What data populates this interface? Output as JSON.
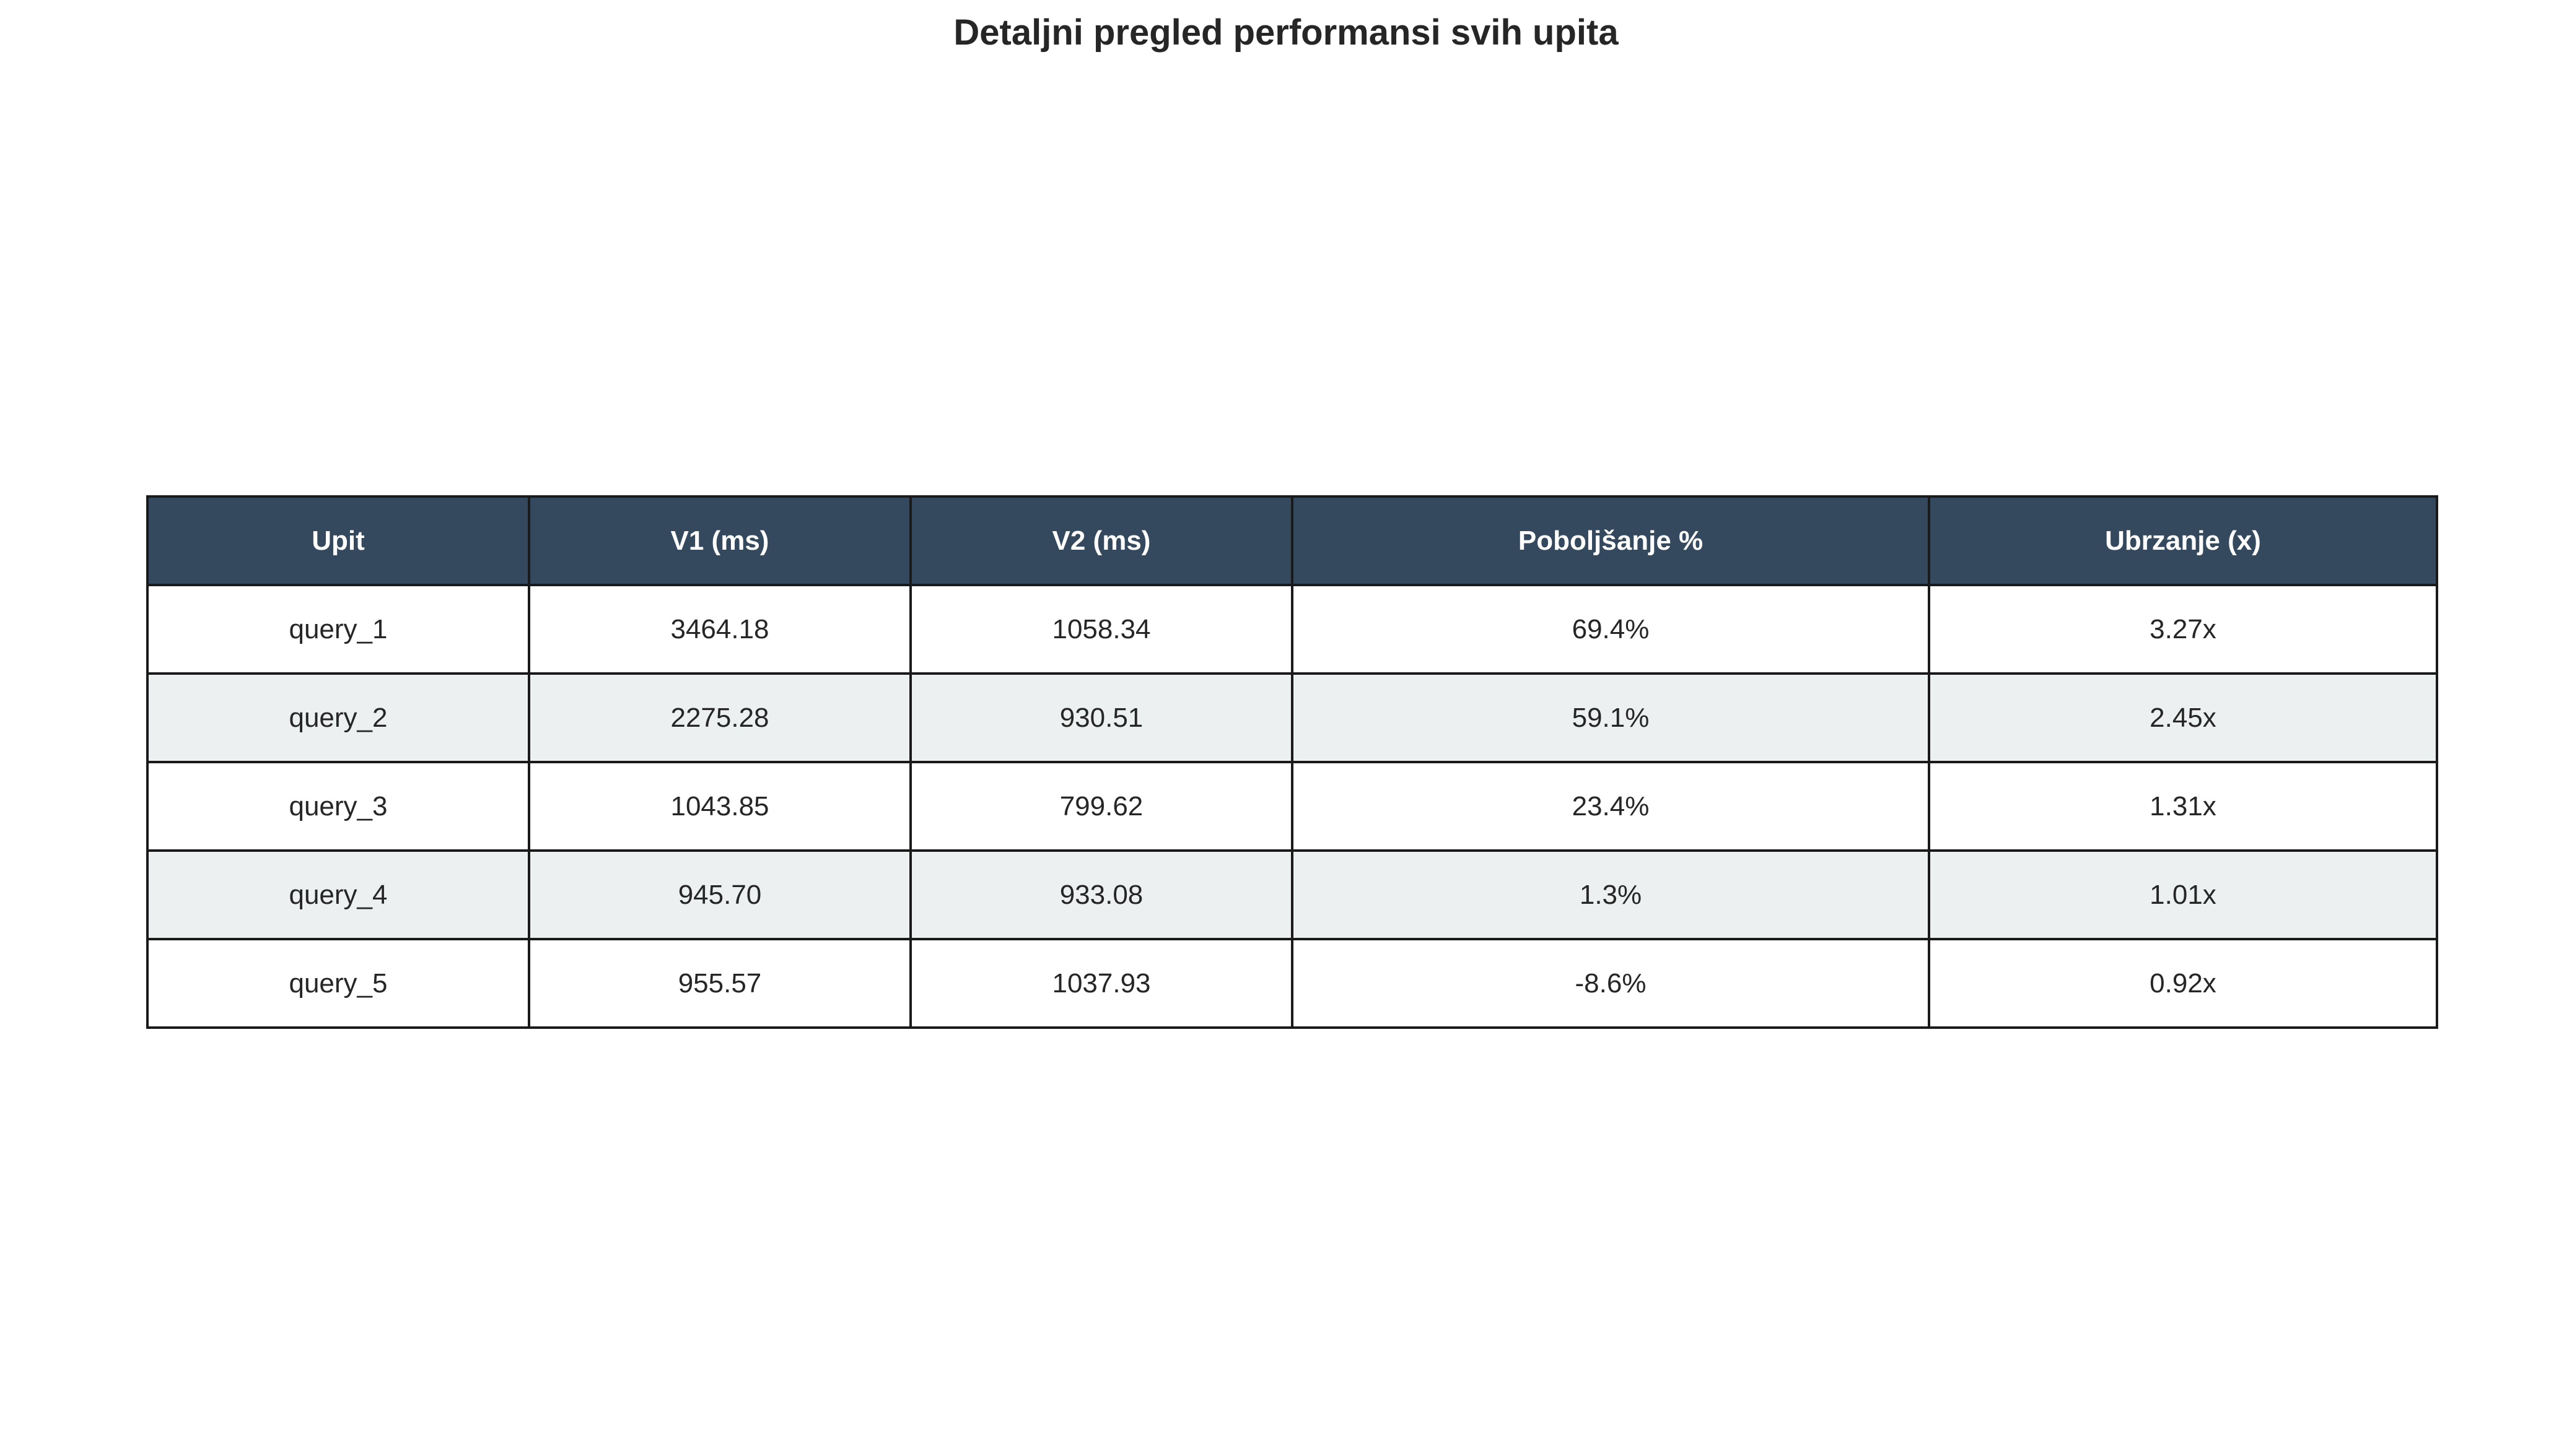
{
  "chart_data": {
    "type": "table",
    "title": "Detaljni pregled performansi svih upita",
    "columns": [
      "Upit",
      "V1 (ms)",
      "V2 (ms)",
      "Poboljšanje %",
      "Ubrzanje (x)"
    ],
    "rows": [
      [
        "query_1",
        "3464.18",
        "1058.34",
        "69.4%",
        "3.27x"
      ],
      [
        "query_2",
        "2275.28",
        "930.51",
        "59.1%",
        "2.45x"
      ],
      [
        "query_3",
        "1043.85",
        "799.62",
        "23.4%",
        "1.31x"
      ],
      [
        "query_4",
        "945.70",
        "933.08",
        "1.3%",
        "1.01x"
      ],
      [
        "query_5",
        "955.57",
        "1037.93",
        "-8.6%",
        "0.92x"
      ]
    ],
    "colors": {
      "header_bg": "#34495e",
      "header_text": "#ffffff",
      "row_alt_bg": "#ecf0f1",
      "row_bg": "#ffffff",
      "border": "#1a1a1a"
    }
  }
}
